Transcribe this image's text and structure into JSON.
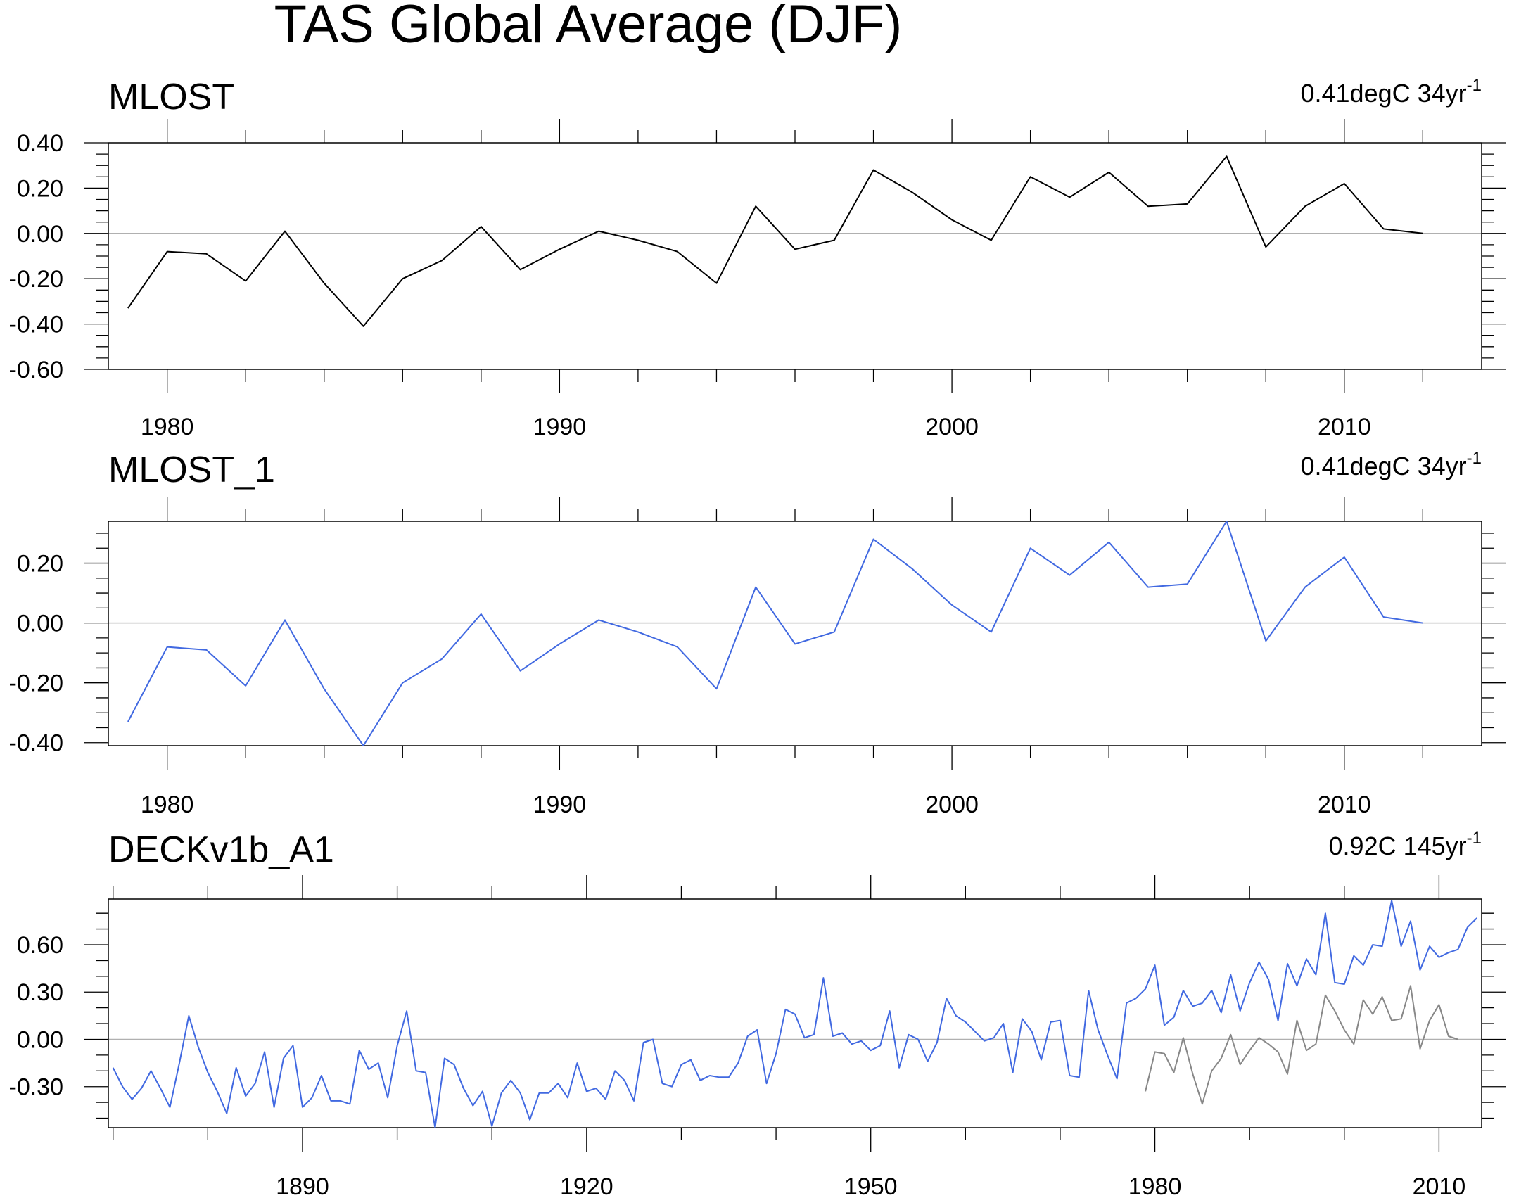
{
  "figure": {
    "title": "TAS Global Average (DJF)"
  },
  "chart_data": [
    {
      "type": "line",
      "title": "MLOST",
      "annotation": {
        "text": "0.41degC 34yr",
        "sup": "-1"
      },
      "xlim": [
        1978.5,
        2013.5
      ],
      "ylim": [
        -0.6,
        0.4
      ],
      "yticks": [
        -0.6,
        -0.4,
        -0.2,
        0.0,
        0.2,
        0.4
      ],
      "yminor": 0.05,
      "ytick_labels": [
        "-0.60",
        "-0.40",
        "-0.20",
        "0.00",
        "0.20",
        "0.40"
      ],
      "xticks": [
        1980,
        1990,
        2000,
        2010
      ],
      "xminor": 2,
      "xtick_labels": [
        "1980",
        "1990",
        "2000",
        "2010"
      ],
      "zero_line": true,
      "series": [
        {
          "color": "#000000",
          "x": [
            1979,
            1980,
            1981,
            1982,
            1983,
            1984,
            1985,
            1986,
            1987,
            1988,
            1989,
            1990,
            1991,
            1992,
            1993,
            1994,
            1995,
            1996,
            1997,
            1998,
            1999,
            2000,
            2001,
            2002,
            2003,
            2004,
            2005,
            2006,
            2007,
            2008,
            2009,
            2010,
            2011,
            2012
          ],
          "y": [
            -0.33,
            -0.08,
            -0.09,
            -0.21,
            0.01,
            -0.22,
            -0.41,
            -0.2,
            -0.12,
            0.03,
            -0.16,
            -0.07,
            0.01,
            -0.03,
            -0.08,
            -0.22,
            0.12,
            -0.07,
            -0.03,
            0.28,
            0.18,
            0.06,
            -0.03,
            0.25,
            0.16,
            0.27,
            0.12,
            0.13,
            0.34,
            -0.06,
            0.12,
            0.22,
            0.02,
            0.0
          ]
        }
      ]
    },
    {
      "type": "line",
      "title": "MLOST_1",
      "annotation": {
        "text": "0.41degC 34yr",
        "sup": "-1"
      },
      "xlim": [
        1978.5,
        2013.5
      ],
      "ylim": [
        -0.41,
        0.34
      ],
      "yticks": [
        -0.4,
        -0.2,
        0.0,
        0.2
      ],
      "yminor": 0.05,
      "ytick_labels": [
        "-0.40",
        "-0.20",
        "0.00",
        "0.20"
      ],
      "xticks": [
        1980,
        1990,
        2000,
        2010
      ],
      "xminor": 2,
      "xtick_labels": [
        "1980",
        "1990",
        "2000",
        "2010"
      ],
      "zero_line": true,
      "series": [
        {
          "color": "#4169e1",
          "x": [
            1979,
            1980,
            1981,
            1982,
            1983,
            1984,
            1985,
            1986,
            1987,
            1988,
            1989,
            1990,
            1991,
            1992,
            1993,
            1994,
            1995,
            1996,
            1997,
            1998,
            1999,
            2000,
            2001,
            2002,
            2003,
            2004,
            2005,
            2006,
            2007,
            2008,
            2009,
            2010,
            2011,
            2012
          ],
          "y": [
            -0.33,
            -0.08,
            -0.09,
            -0.21,
            0.01,
            -0.22,
            -0.41,
            -0.2,
            -0.12,
            0.03,
            -0.16,
            -0.07,
            0.01,
            -0.03,
            -0.08,
            -0.22,
            0.12,
            -0.07,
            -0.03,
            0.28,
            0.18,
            0.06,
            -0.03,
            0.25,
            0.16,
            0.27,
            0.12,
            0.13,
            0.34,
            -0.06,
            0.12,
            0.22,
            0.02,
            0.0
          ]
        }
      ]
    },
    {
      "type": "line",
      "title": "DECKv1b_A1",
      "annotation": {
        "text": "0.92C 145yr",
        "sup": "-1"
      },
      "xlim": [
        1869.5,
        2014.5
      ],
      "ylim": [
        -0.56,
        0.89
      ],
      "yticks": [
        -0.3,
        0.0,
        0.3,
        0.6
      ],
      "yminor": 0.1,
      "ytick_labels": [
        "-0.30",
        "0.00",
        "0.30",
        "0.60"
      ],
      "xticks": [
        1890,
        1920,
        1950,
        1980,
        2010
      ],
      "xminor": 10,
      "xtick_labels": [
        "1890",
        "1920",
        "1950",
        "1980",
        "2010"
      ],
      "zero_line": true,
      "series": [
        {
          "color": "#4169e1",
          "x": [
            1870,
            1871,
            1872,
            1873,
            1874,
            1875,
            1876,
            1877,
            1878,
            1879,
            1880,
            1881,
            1882,
            1883,
            1884,
            1885,
            1886,
            1887,
            1888,
            1889,
            1890,
            1891,
            1892,
            1893,
            1894,
            1895,
            1896,
            1897,
            1898,
            1899,
            1900,
            1901,
            1902,
            1903,
            1904,
            1905,
            1906,
            1907,
            1908,
            1909,
            1910,
            1911,
            1912,
            1913,
            1914,
            1915,
            1916,
            1917,
            1918,
            1919,
            1920,
            1921,
            1922,
            1923,
            1924,
            1925,
            1926,
            1927,
            1928,
            1929,
            1930,
            1931,
            1932,
            1933,
            1934,
            1935,
            1936,
            1937,
            1938,
            1939,
            1940,
            1941,
            1942,
            1943,
            1944,
            1945,
            1946,
            1947,
            1948,
            1949,
            1950,
            1951,
            1952,
            1953,
            1954,
            1955,
            1956,
            1957,
            1958,
            1959,
            1960,
            1961,
            1962,
            1963,
            1964,
            1965,
            1966,
            1967,
            1968,
            1969,
            1970,
            1971,
            1972,
            1973,
            1974,
            1975,
            1976,
            1977,
            1978,
            1979,
            1980,
            1981,
            1982,
            1983,
            1984,
            1985,
            1986,
            1987,
            1988,
            1989,
            1990,
            1991,
            1992,
            1993,
            1994,
            1995,
            1996,
            1997,
            1998,
            1999,
            2000,
            2001,
            2002,
            2003,
            2004,
            2005,
            2006,
            2007,
            2008,
            2009,
            2010,
            2011,
            2012,
            2013,
            2014
          ],
          "y": [
            -0.18,
            -0.3,
            -0.38,
            -0.31,
            -0.2,
            -0.31,
            -0.43,
            -0.15,
            0.15,
            -0.05,
            -0.21,
            -0.33,
            -0.47,
            -0.18,
            -0.36,
            -0.28,
            -0.08,
            -0.43,
            -0.12,
            -0.04,
            -0.43,
            -0.37,
            -0.23,
            -0.39,
            -0.39,
            -0.41,
            -0.07,
            -0.19,
            -0.15,
            -0.37,
            -0.04,
            0.18,
            -0.2,
            -0.21,
            -0.56,
            -0.12,
            -0.16,
            -0.31,
            -0.42,
            -0.33,
            -0.55,
            -0.34,
            -0.26,
            -0.34,
            -0.51,
            -0.34,
            -0.34,
            -0.28,
            -0.37,
            -0.15,
            -0.33,
            -0.31,
            -0.38,
            -0.2,
            -0.26,
            -0.39,
            -0.02,
            0.0,
            -0.28,
            -0.3,
            -0.16,
            -0.13,
            -0.26,
            -0.23,
            -0.24,
            -0.24,
            -0.15,
            0.02,
            0.06,
            -0.28,
            -0.09,
            0.19,
            0.16,
            0.01,
            0.03,
            0.39,
            0.02,
            0.04,
            -0.03,
            -0.01,
            -0.07,
            -0.04,
            0.18,
            -0.18,
            0.03,
            0.0,
            -0.14,
            -0.02,
            0.26,
            0.15,
            0.11,
            0.05,
            -0.01,
            0.01,
            0.1,
            -0.21,
            0.13,
            0.05,
            -0.13,
            0.11,
            0.12,
            -0.23,
            -0.24,
            0.31,
            0.06,
            -0.1,
            -0.25,
            0.23,
            0.26,
            0.32,
            0.47,
            0.09,
            0.14,
            0.31,
            0.21,
            0.23,
            0.31,
            0.17,
            0.41,
            0.18,
            0.36,
            0.49,
            0.38,
            0.12,
            0.48,
            0.34,
            0.51,
            0.41,
            0.8,
            0.36,
            0.35,
            0.53,
            0.47,
            0.6,
            0.59,
            0.88,
            0.59,
            0.75,
            0.44,
            0.59,
            0.52,
            0.55,
            0.57,
            0.71,
            0.77
          ]
        },
        {
          "color": "#888888",
          "x": [
            1979,
            1980,
            1981,
            1982,
            1983,
            1984,
            1985,
            1986,
            1987,
            1988,
            1989,
            1990,
            1991,
            1992,
            1993,
            1994,
            1995,
            1996,
            1997,
            1998,
            1999,
            2000,
            2001,
            2002,
            2003,
            2004,
            2005,
            2006,
            2007,
            2008,
            2009,
            2010,
            2011,
            2012
          ],
          "y": [
            -0.33,
            -0.08,
            -0.09,
            -0.21,
            0.01,
            -0.22,
            -0.41,
            -0.2,
            -0.12,
            0.03,
            -0.16,
            -0.07,
            0.01,
            -0.03,
            -0.08,
            -0.22,
            0.12,
            -0.07,
            -0.03,
            0.28,
            0.18,
            0.06,
            -0.03,
            0.25,
            0.16,
            0.27,
            0.12,
            0.13,
            0.34,
            -0.06,
            0.12,
            0.22,
            0.02,
            0.0
          ]
        }
      ]
    }
  ]
}
